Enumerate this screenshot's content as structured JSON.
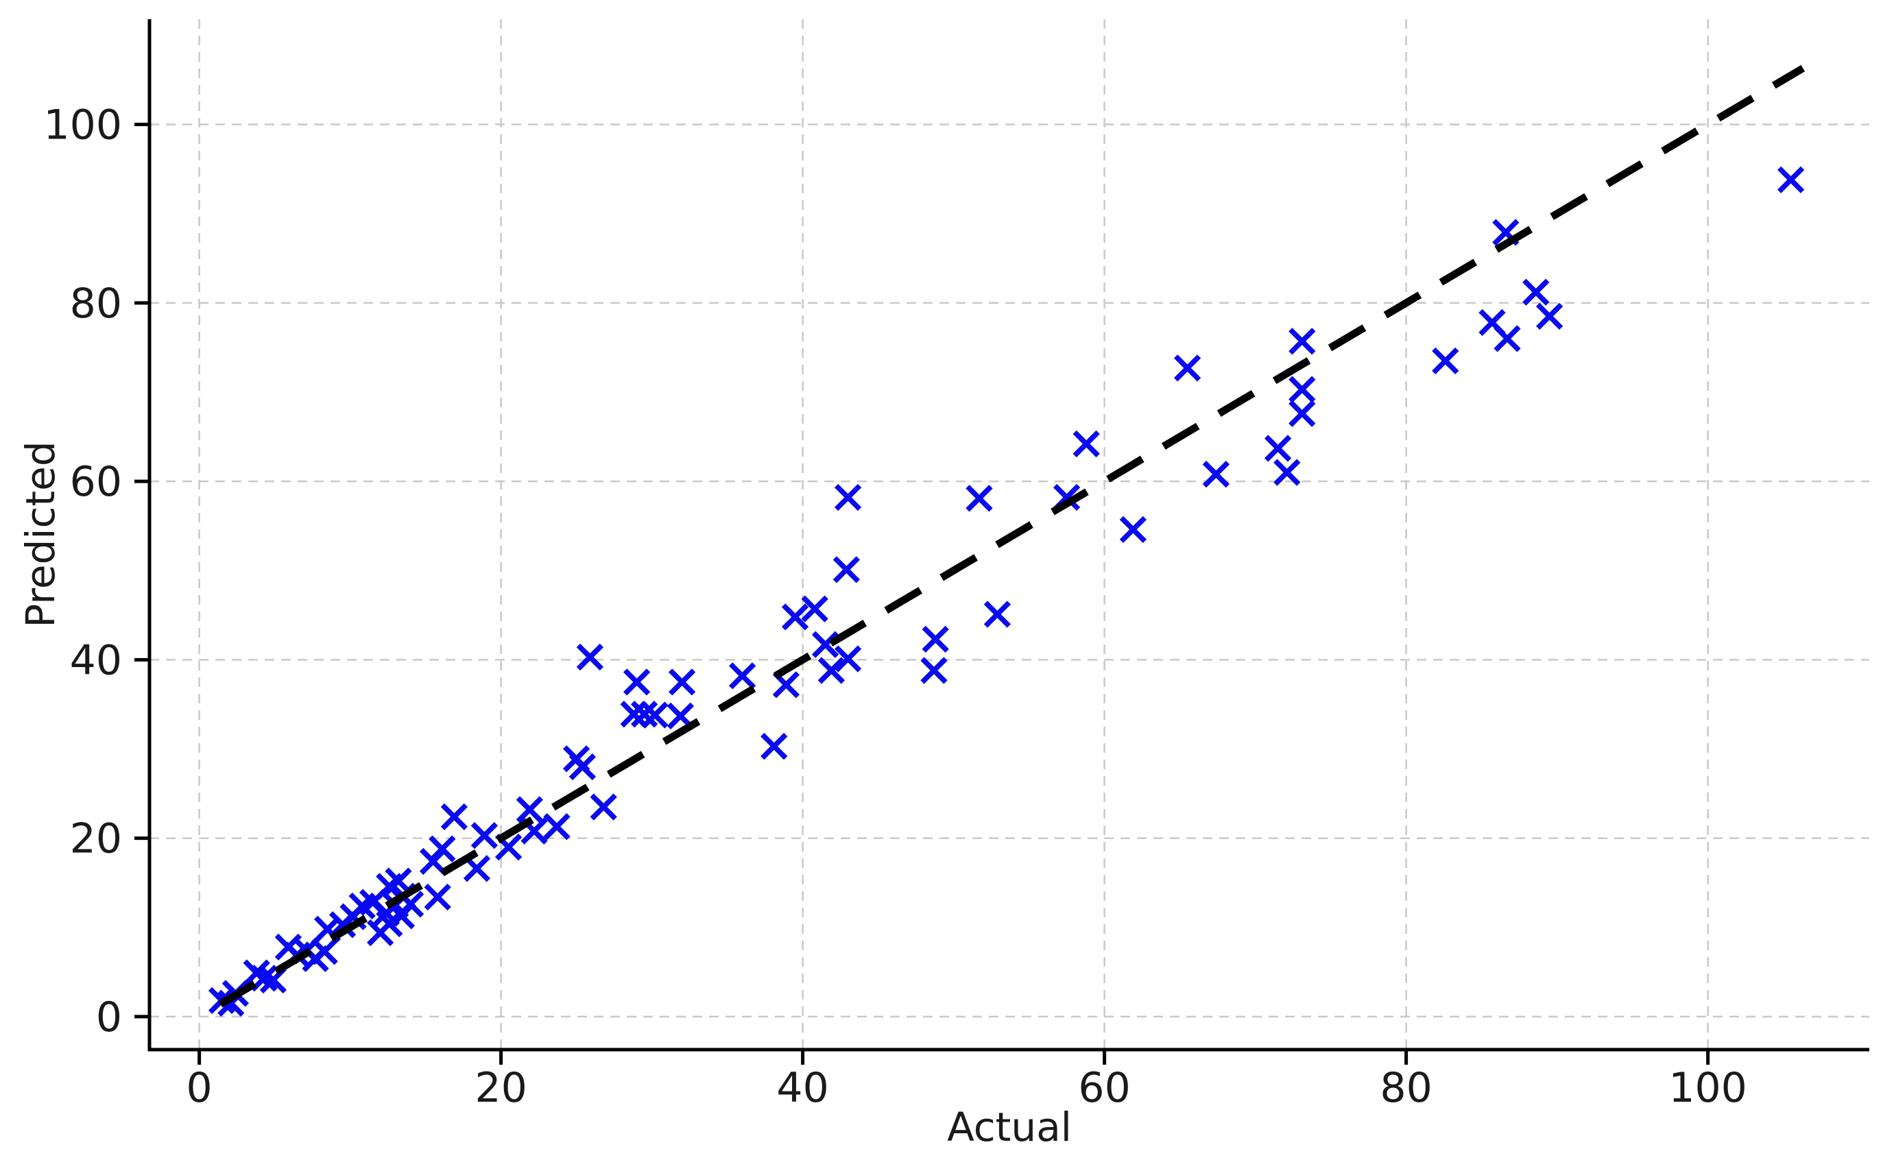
{
  "figure": {
    "background": "#ffffff",
    "text_color": "#1a1a1a"
  },
  "chart_data": {
    "type": "scatter",
    "title": "",
    "xlabel": "Actual",
    "ylabel": "Predicted",
    "xlim": [
      -3.3,
      110.7
    ],
    "ylim": [
      -3.7,
      111.8
    ],
    "x_ticks": [
      0,
      20,
      40,
      60,
      80,
      100
    ],
    "y_ticks": [
      0,
      20,
      40,
      60,
      80,
      100
    ],
    "grid": true,
    "grid_color": "#c9c9c9",
    "spine_color": "#000000",
    "legend": "none",
    "marker": {
      "shape": "x",
      "color": "#0a0aee",
      "size": 34,
      "stroke_width": 7.5
    },
    "identity_line": {
      "style": "dashed",
      "color": "#000000",
      "width": 11,
      "x_start": 1.4,
      "y_start": 1.4,
      "x_end": 106.3,
      "y_end": 106.3
    },
    "series": [
      {
        "name": "predictions-vs-actual",
        "points": [
          [
            1.5,
            1.8
          ],
          [
            2.1,
            1.5
          ],
          [
            2.4,
            2.6
          ],
          [
            3.8,
            4.9
          ],
          [
            4.3,
            4.3
          ],
          [
            4.9,
            4.1
          ],
          [
            5.9,
            7.8
          ],
          [
            6.5,
            6.9
          ],
          [
            7.1,
            7.4
          ],
          [
            7.7,
            6.5
          ],
          [
            8.3,
            7.3
          ],
          [
            8.5,
            9.8
          ],
          [
            9.5,
            10.3
          ],
          [
            10.2,
            11.2
          ],
          [
            10.8,
            12.4
          ],
          [
            11.5,
            12.8
          ],
          [
            12.0,
            9.4
          ],
          [
            12.4,
            11.6
          ],
          [
            12.6,
            10.4
          ],
          [
            12.6,
            14.6
          ],
          [
            13.0,
            12.5
          ],
          [
            13.2,
            15.2
          ],
          [
            13.4,
            11.3
          ],
          [
            13.5,
            13.5
          ],
          [
            14.0,
            12.6
          ],
          [
            15.8,
            13.4
          ],
          [
            15.5,
            17.4
          ],
          [
            16.1,
            18.8
          ],
          [
            16.9,
            22.4
          ],
          [
            18.4,
            16.6
          ],
          [
            18.9,
            20.3
          ],
          [
            20.5,
            19.0
          ],
          [
            21.9,
            23.2
          ],
          [
            22.2,
            20.8
          ],
          [
            23.7,
            21.3
          ],
          [
            25.0,
            28.9
          ],
          [
            25.4,
            28.0
          ],
          [
            26.8,
            23.5
          ],
          [
            25.9,
            40.3
          ],
          [
            28.8,
            33.9
          ],
          [
            29.5,
            33.9
          ],
          [
            30.2,
            33.8
          ],
          [
            31.9,
            33.7
          ],
          [
            29.0,
            37.5
          ],
          [
            32.0,
            37.5
          ],
          [
            36.0,
            38.2
          ],
          [
            38.9,
            37.2
          ],
          [
            38.1,
            30.3
          ],
          [
            39.5,
            44.8
          ],
          [
            40.8,
            45.7
          ],
          [
            41.5,
            41.7
          ],
          [
            41.9,
            38.8
          ],
          [
            43.0,
            40.1
          ],
          [
            42.9,
            50.1
          ],
          [
            43.0,
            58.2
          ],
          [
            48.8,
            42.3
          ],
          [
            48.7,
            38.8
          ],
          [
            52.9,
            45.1
          ],
          [
            51.7,
            58.1
          ],
          [
            57.5,
            58.2
          ],
          [
            58.8,
            64.2
          ],
          [
            61.9,
            54.6
          ],
          [
            65.5,
            72.7
          ],
          [
            67.4,
            60.8
          ],
          [
            71.5,
            63.7
          ],
          [
            72.1,
            61.0
          ],
          [
            73.1,
            75.7
          ],
          [
            73.1,
            70.3
          ],
          [
            73.1,
            67.6
          ],
          [
            82.6,
            73.5
          ],
          [
            85.7,
            77.8
          ],
          [
            86.7,
            76.0
          ],
          [
            86.6,
            87.9
          ],
          [
            88.6,
            81.2
          ],
          [
            89.5,
            78.5
          ],
          [
            105.5,
            93.8
          ]
        ]
      }
    ]
  }
}
